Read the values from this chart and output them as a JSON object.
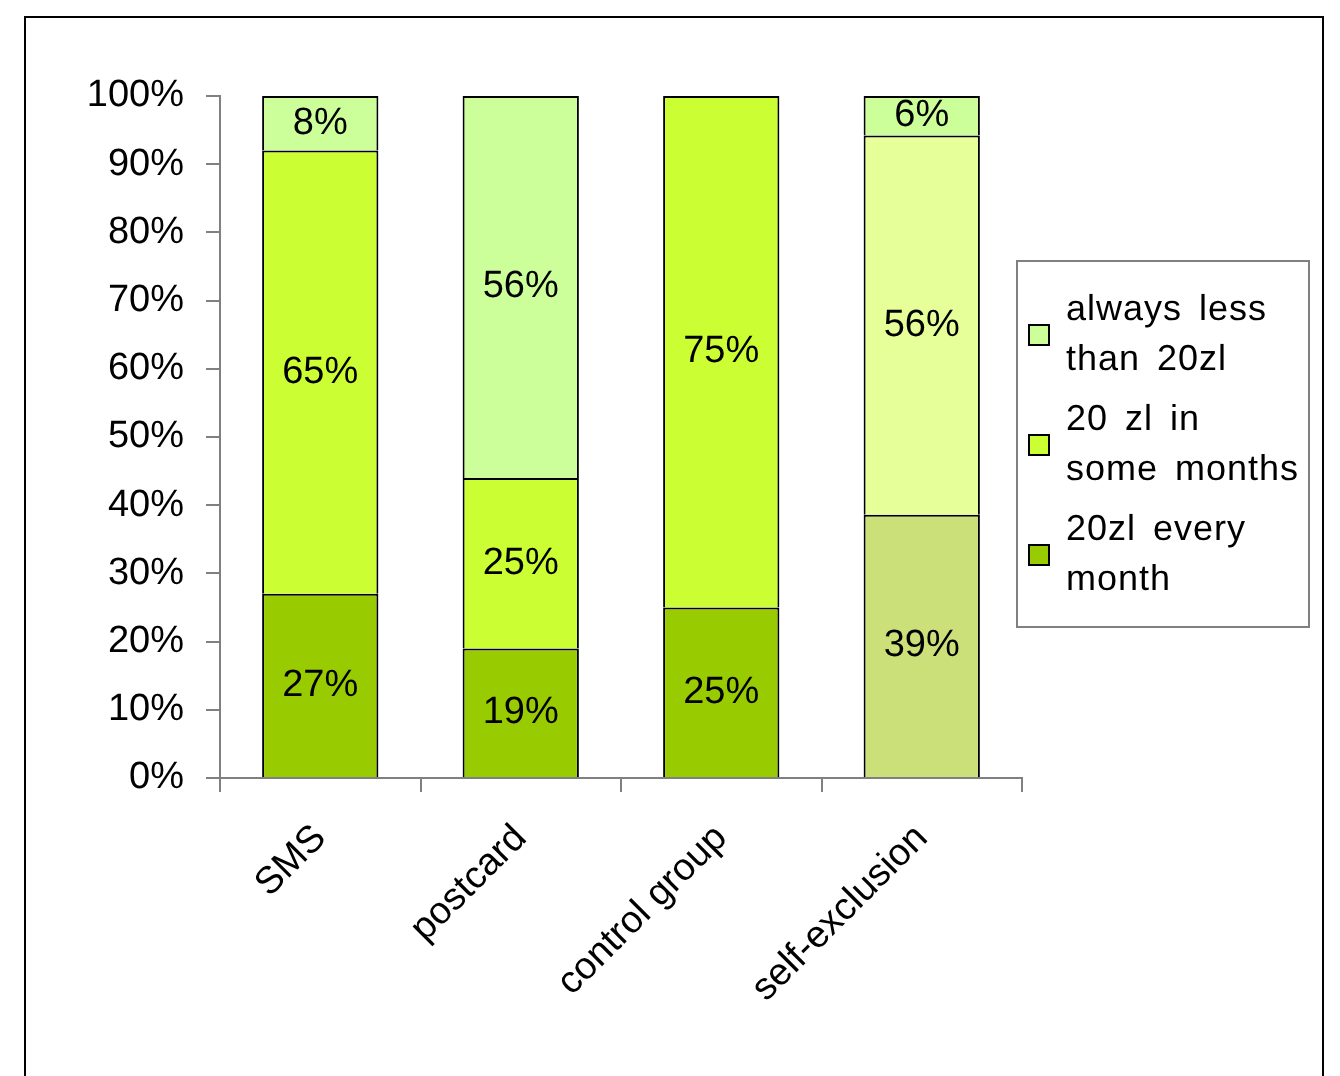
{
  "chart_data": {
    "type": "bar",
    "stacked": true,
    "categories": [
      "SMS",
      "postcard",
      "control group",
      "self-exclusion"
    ],
    "series": [
      {
        "name": "20zl every month",
        "color": "#99cc00",
        "colors": [
          "#99cc00",
          "#99cc00",
          "#99cc00",
          "#cce07a"
        ],
        "values": [
          27,
          19,
          25,
          38.6
        ],
        "value_labels": [
          "27%",
          "19%",
          "25%",
          "39%"
        ]
      },
      {
        "name": "20 zl in some months",
        "color": "#ccff33",
        "colors": [
          "#ccff33",
          "#ccff33",
          "#ccff33",
          "#e6ff99"
        ],
        "values": [
          65,
          25,
          75,
          55.6
        ],
        "value_labels": [
          "65%",
          "25%",
          "75%",
          "56%"
        ]
      },
      {
        "name": "always less than 20zl",
        "color": "#ccff99",
        "colors": [
          "#ccff99",
          "#ccff99",
          "#ccff99",
          "#ccff99"
        ],
        "values": [
          8,
          56,
          null,
          5.8
        ],
        "value_labels": [
          "8%",
          "56%",
          null,
          "6%"
        ]
      }
    ],
    "ylim": [
      0,
      100
    ],
    "yticks": [
      {
        "value": 0,
        "label": "0%"
      },
      {
        "value": 10,
        "label": "10%"
      },
      {
        "value": 20,
        "label": "20%"
      },
      {
        "value": 30,
        "label": "30%"
      },
      {
        "value": 40,
        "label": "40%"
      },
      {
        "value": 50,
        "label": "50%"
      },
      {
        "value": 60,
        "label": "60%"
      },
      {
        "value": 70,
        "label": "70%"
      },
      {
        "value": 80,
        "label": "80%"
      },
      {
        "value": 90,
        "label": "90%"
      },
      {
        "value": 100,
        "label": "100%"
      }
    ],
    "grid": false,
    "legend": "right"
  }
}
